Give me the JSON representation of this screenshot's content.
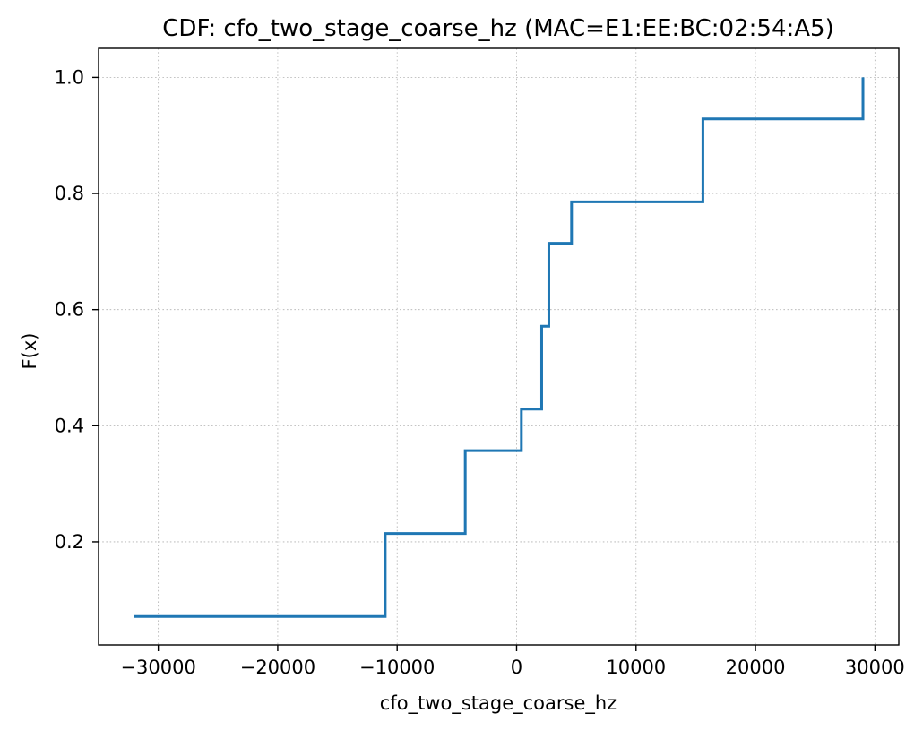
{
  "chart_data": {
    "type": "line",
    "step": "post",
    "title": "CDF: cfo_two_stage_coarse_hz (MAC=E1:EE:BC:02:54:A5)",
    "xlabel": "cfo_two_stage_coarse_hz",
    "ylabel": "F(x)",
    "xlim": [
      -35000,
      32000
    ],
    "ylim": [
      0.0225,
      1.05
    ],
    "grid": true,
    "x_ticks": [
      -30000,
      -20000,
      -10000,
      0,
      10000,
      20000,
      30000
    ],
    "x_tick_labels": [
      "−30000",
      "−20000",
      "−10000",
      "0",
      "10000",
      "20000",
      "30000"
    ],
    "y_ticks": [
      0.2,
      0.4,
      0.6,
      0.8,
      1.0
    ],
    "y_tick_labels": [
      "0.2",
      "0.4",
      "0.6",
      "0.8",
      "1.0"
    ],
    "series": [
      {
        "color": "#1f77b4",
        "x": [
          -32000,
          -11000,
          -4300,
          400,
          2100,
          2700,
          4600,
          15600,
          29000
        ],
        "y": [
          0.0714,
          0.2143,
          0.3571,
          0.4286,
          0.5714,
          0.7143,
          0.7857,
          0.9286,
          1.0
        ]
      }
    ]
  }
}
